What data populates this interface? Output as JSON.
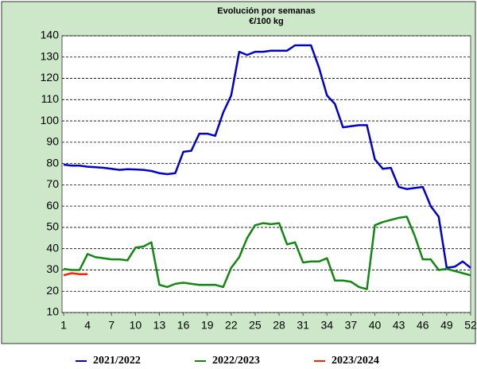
{
  "chart_data": {
    "type": "line",
    "title": "Evolución por semanas",
    "subtitle": "€/100 kg",
    "x": [
      1,
      2,
      3,
      4,
      5,
      6,
      7,
      8,
      9,
      10,
      11,
      12,
      13,
      14,
      15,
      16,
      17,
      18,
      19,
      20,
      21,
      22,
      23,
      24,
      25,
      26,
      27,
      28,
      29,
      30,
      31,
      32,
      33,
      34,
      35,
      36,
      37,
      38,
      39,
      40,
      41,
      42,
      43,
      44,
      45,
      46,
      47,
      48,
      49,
      50,
      51,
      52
    ],
    "series": [
      {
        "name": "2021/2022",
        "color": "#0000cc",
        "values": [
          79.5,
          79,
          79,
          78.5,
          78.3,
          78,
          77.5,
          77,
          77.3,
          77.2,
          77,
          76.5,
          75.5,
          75,
          75.5,
          85.5,
          86,
          94,
          94,
          93,
          104,
          112,
          132.5,
          131,
          132.5,
          132.5,
          133,
          133,
          133,
          135.5,
          135.5,
          135.5,
          125,
          112,
          108,
          97,
          97.5,
          98,
          98,
          82,
          77.5,
          78,
          69,
          68,
          68.5,
          69,
          60,
          55,
          31,
          31.5,
          34,
          31
        ]
      },
      {
        "name": "2022/2023",
        "color": "#118811",
        "values": [
          30.5,
          30,
          30,
          37.5,
          36,
          35.5,
          35,
          35,
          34.5,
          40.5,
          41,
          43,
          23,
          22,
          23.5,
          24,
          23.5,
          23,
          23,
          23,
          22,
          31,
          36,
          45,
          51,
          52,
          51.5,
          52,
          42,
          43,
          33.5,
          34,
          34,
          35.5,
          25,
          25,
          24.5,
          22,
          21,
          51,
          52.5,
          53.5,
          54.5,
          55,
          46,
          35,
          35,
          30,
          30.5,
          29.5,
          28.5,
          27.5
        ]
      },
      {
        "name": "2023/2024",
        "color": "#ff2200",
        "values": [
          27.5,
          28.5,
          28,
          28,
          null,
          null,
          null,
          null,
          null,
          null,
          null,
          null,
          null,
          null,
          null,
          null,
          null,
          null,
          null,
          null,
          null,
          null,
          null,
          null,
          null,
          null,
          null,
          null,
          null,
          null,
          null,
          null,
          null,
          null,
          null,
          null,
          null,
          null,
          null,
          null,
          null,
          null,
          null,
          null,
          null,
          null,
          null,
          null,
          null,
          null,
          null,
          null
        ]
      }
    ],
    "xlim": [
      1,
      52
    ],
    "xticks": [
      1,
      4,
      7,
      10,
      13,
      16,
      19,
      22,
      25,
      28,
      31,
      34,
      37,
      40,
      43,
      46,
      49,
      52
    ],
    "ylim": [
      10,
      140
    ],
    "yticks": [
      10,
      20,
      30,
      40,
      50,
      60,
      70,
      80,
      90,
      100,
      110,
      120,
      130,
      140
    ],
    "grid": true
  }
}
